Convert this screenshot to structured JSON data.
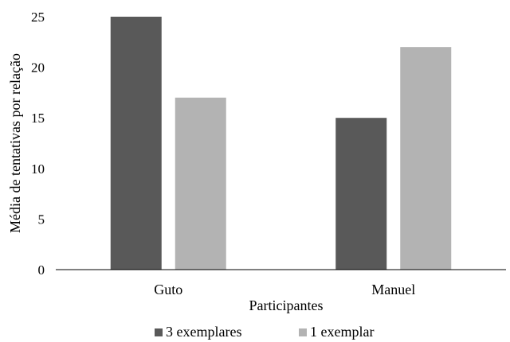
{
  "chart_data": {
    "type": "bar",
    "title": "",
    "xlabel": "Participantes",
    "ylabel": "Média de tentativas por relação",
    "categories": [
      "Guto",
      "Manuel"
    ],
    "ylim": [
      0,
      25
    ],
    "yticks": [
      0,
      5,
      10,
      15,
      20,
      25
    ],
    "grid": false,
    "legend_position": "bottom",
    "series": [
      {
        "name": "3 exemplares",
        "color": "#595959",
        "values": [
          25,
          15
        ]
      },
      {
        "name": "1 exemplar",
        "color": "#b3b3b3",
        "values": [
          17,
          22
        ]
      }
    ]
  }
}
